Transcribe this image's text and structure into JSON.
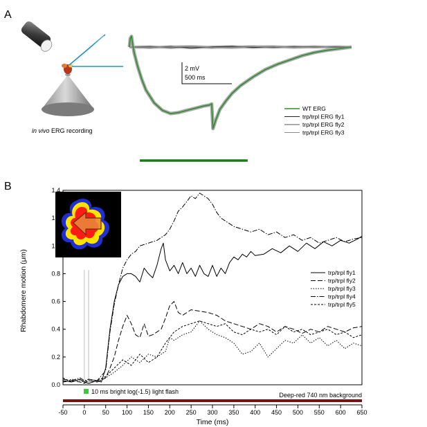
{
  "panel_a": {
    "letter": "A",
    "illustration_caption_italic": "in vivo",
    "illustration_caption_rest": " ERG recording",
    "scale_bar": {
      "voltage_label": "2 mV",
      "time_label": "500 ms"
    },
    "legend": [
      "WT ERG",
      "trp/trpl ERG fly1",
      "trp/trpl ERG fly2",
      "trp/trpl ERG fly3"
    ],
    "colors": {
      "wt": "#2e8b2e",
      "wt_envelope": "#a9a9a9",
      "stimulus_bar": "#1f7a1f",
      "mutant": "#333333"
    }
  },
  "panel_b": {
    "letter": "B",
    "stimulus_label": "10 ms bright log(-1.5) light flash",
    "background_label": "Deep-red 740 nm background",
    "colors": {
      "flash": "#33cc33",
      "background_bar": "#7a1010"
    },
    "inset": "rhabdomere-image"
  },
  "chart_data": [
    {
      "type": "line",
      "title": "",
      "xlabel": "",
      "ylabel": "",
      "x_unit": "ms",
      "stimulus": {
        "start": 0,
        "end": 2000
      },
      "scale_bar": {
        "voltage_mV": 2,
        "time_ms": 500
      },
      "series": [
        {
          "name": "WT ERG",
          "x": [
            0,
            20,
            50,
            80,
            120,
            200,
            300,
            400,
            600,
            800,
            1000,
            1200,
            1400,
            1600,
            1800,
            1950,
            2000,
            2030,
            2100,
            2200,
            2350,
            2500,
            2700,
            3000,
            3300,
            3600,
            3900,
            4200,
            4500,
            4800,
            5000,
            5200,
            5400
          ],
          "y": [
            0,
            0.8,
            1.0,
            0.2,
            -0.6,
            -1.8,
            -3.0,
            -4.0,
            -5.2,
            -5.9,
            -6.2,
            -6.1,
            -5.9,
            -5.7,
            -5.5,
            -5.4,
            -5.3,
            -7.6,
            -6.8,
            -5.8,
            -5.0,
            -4.3,
            -3.6,
            -2.8,
            -2.1,
            -1.6,
            -1.2,
            -0.8,
            -0.5,
            -0.3,
            -0.2,
            -0.1,
            0
          ]
        },
        {
          "name": "trp/trpl ERG fly1",
          "x": [
            0,
            500,
            1000,
            1500,
            2000,
            2500,
            3000,
            3500,
            4000,
            4500,
            5000,
            5400
          ],
          "y": [
            0,
            -0.05,
            0.05,
            -0.08,
            0.02,
            0.06,
            -0.04,
            0.03,
            -0.02,
            0.04,
            -0.03,
            0
          ]
        },
        {
          "name": "trp/trpl ERG fly2",
          "x": [
            0,
            500,
            1000,
            1500,
            2000,
            2500,
            3000,
            3500,
            4000,
            4500,
            5000,
            5400
          ],
          "y": [
            0,
            0.04,
            -0.06,
            0.03,
            -0.05,
            0.02,
            0.05,
            -0.03,
            0.04,
            -0.02,
            0.03,
            0
          ]
        },
        {
          "name": "trp/trpl ERG fly3",
          "x": [
            0,
            500,
            1000,
            1500,
            2000,
            2500,
            3000,
            3500,
            4000,
            4500,
            5000,
            5400
          ],
          "y": [
            0,
            -0.03,
            0.02,
            0.06,
            -0.02,
            -0.05,
            0.03,
            0.05,
            -0.04,
            0.02,
            -0.01,
            0
          ]
        }
      ]
    },
    {
      "type": "line",
      "title": "",
      "xlabel": "Time (ms)",
      "ylabel": "Rhabdomere motion (μm)",
      "xlim": [
        -50,
        650
      ],
      "ylim": [
        0,
        1.4
      ],
      "xticks": [
        -50,
        0,
        50,
        100,
        150,
        200,
        250,
        300,
        350,
        400,
        450,
        500,
        550,
        600,
        650
      ],
      "yticks": [
        0.0,
        0.2,
        0.4,
        0.6,
        0.8,
        1.0,
        1.2,
        1.4
      ],
      "xtick_labels": [
        "-50",
        "0",
        "50",
        "100",
        "150",
        "200",
        "250",
        "300",
        "350",
        "400",
        "450",
        "500",
        "550",
        "600",
        "650"
      ],
      "ytick_labels": [
        "0.0",
        "0.2",
        "0.4",
        "0.6",
        "0.8",
        "1.0",
        "1.2",
        "1.4"
      ],
      "grid": false,
      "legend_position": "right",
      "stimulus": {
        "start": 0,
        "end": 10
      },
      "series": [
        {
          "name": "trp/trpl fly1",
          "dash": "",
          "x": [
            -50,
            -30,
            -10,
            0,
            10,
            30,
            40,
            50,
            60,
            70,
            80,
            90,
            100,
            110,
            120,
            130,
            140,
            150,
            160,
            170,
            180,
            185,
            190,
            200,
            210,
            220,
            230,
            240,
            250,
            260,
            270,
            280,
            290,
            300,
            310,
            320,
            330,
            340,
            350,
            360,
            370,
            380,
            390,
            400,
            420,
            440,
            460,
            480,
            500,
            520,
            540,
            560,
            580,
            600,
            620,
            640,
            650
          ],
          "y": [
            0.03,
            0.02,
            0.04,
            0.02,
            0.01,
            0.03,
            0.02,
            0.12,
            0.4,
            0.6,
            0.72,
            0.78,
            0.8,
            0.8,
            0.78,
            0.74,
            0.84,
            0.8,
            0.77,
            0.86,
            0.98,
            1.02,
            0.9,
            0.82,
            0.86,
            0.8,
            0.88,
            0.8,
            0.84,
            0.78,
            0.86,
            0.8,
            0.78,
            0.86,
            0.78,
            0.84,
            0.8,
            0.88,
            0.92,
            0.9,
            0.94,
            0.92,
            0.96,
            0.93,
            0.94,
            0.98,
            0.95,
            1.0,
            0.96,
            1.02,
            0.98,
            1.03,
            1.0,
            1.04,
            1.02,
            1.05,
            1.07
          ]
        },
        {
          "name": "trp/trpl fly2",
          "dash": "7,3",
          "x": [
            -50,
            -30,
            -10,
            0,
            10,
            30,
            50,
            60,
            70,
            80,
            90,
            100,
            110,
            120,
            130,
            140,
            150,
            160,
            170,
            180,
            190,
            200,
            210,
            220,
            230,
            240,
            250,
            270,
            290,
            310,
            330,
            350,
            370,
            390,
            410,
            430,
            450,
            470,
            490,
            510,
            530,
            550,
            570,
            590,
            610,
            630,
            650
          ],
          "y": [
            0.02,
            0.03,
            0.02,
            0.01,
            0.03,
            0.02,
            0.05,
            0.12,
            0.2,
            0.32,
            0.42,
            0.5,
            0.44,
            0.36,
            0.34,
            0.44,
            0.35,
            0.36,
            0.38,
            0.4,
            0.48,
            0.57,
            0.6,
            0.52,
            0.5,
            0.52,
            0.54,
            0.53,
            0.52,
            0.5,
            0.46,
            0.44,
            0.42,
            0.4,
            0.44,
            0.42,
            0.38,
            0.42,
            0.4,
            0.37,
            0.4,
            0.38,
            0.42,
            0.4,
            0.38,
            0.41,
            0.42
          ]
        },
        {
          "name": "trp/trpl fly3",
          "dash": "1.5,2",
          "x": [
            -50,
            -30,
            -10,
            0,
            10,
            30,
            50,
            70,
            90,
            110,
            130,
            150,
            170,
            190,
            200,
            210,
            230,
            250,
            270,
            290,
            310,
            330,
            350,
            370,
            390,
            410,
            430,
            450,
            470,
            490,
            510,
            530,
            550,
            570,
            590,
            610,
            630,
            650
          ],
          "y": [
            0.02,
            0.04,
            0.03,
            0.02,
            0.03,
            0.02,
            0.05,
            0.09,
            0.14,
            0.2,
            0.16,
            0.22,
            0.2,
            0.24,
            0.34,
            0.32,
            0.36,
            0.38,
            0.46,
            0.4,
            0.36,
            0.34,
            0.3,
            0.22,
            0.24,
            0.3,
            0.2,
            0.26,
            0.32,
            0.3,
            0.36,
            0.3,
            0.34,
            0.28,
            0.32,
            0.26,
            0.3,
            0.28
          ]
        },
        {
          "name": "trp/trpl fly4",
          "dash": "7,2,1.5,2",
          "x": [
            -50,
            -30,
            -10,
            0,
            10,
            30,
            50,
            60,
            70,
            80,
            90,
            100,
            110,
            120,
            130,
            150,
            170,
            190,
            200,
            210,
            220,
            230,
            240,
            250,
            260,
            270,
            280,
            290,
            300,
            310,
            320,
            330,
            340,
            350,
            370,
            390,
            410,
            430,
            450,
            470,
            490,
            510,
            530,
            550,
            570,
            590,
            610,
            630,
            650
          ],
          "y": [
            0.04,
            0.03,
            0.05,
            0.03,
            0.04,
            0.03,
            0.1,
            0.38,
            0.58,
            0.72,
            0.84,
            0.9,
            0.94,
            0.96,
            1.0,
            1.02,
            1.04,
            1.08,
            1.12,
            1.18,
            1.25,
            1.28,
            1.32,
            1.36,
            1.34,
            1.38,
            1.36,
            1.34,
            1.3,
            1.24,
            1.2,
            1.18,
            1.16,
            1.14,
            1.12,
            1.1,
            1.12,
            1.08,
            1.1,
            1.06,
            1.08,
            1.04,
            1.06,
            1.02,
            1.04,
            1.06,
            1.03,
            1.05,
            1.06
          ]
        },
        {
          "name": "trp/trpl fly5",
          "dash": "3,2",
          "x": [
            -50,
            -30,
            -10,
            0,
            10,
            30,
            50,
            70,
            90,
            110,
            130,
            150,
            170,
            190,
            210,
            230,
            250,
            270,
            290,
            310,
            330,
            350,
            370,
            390,
            410,
            430,
            450,
            470,
            490,
            510,
            530,
            550,
            570,
            590,
            610,
            630,
            650
          ],
          "y": [
            0.05,
            0.02,
            0.04,
            0.02,
            0.04,
            0.03,
            0.06,
            0.12,
            0.18,
            0.14,
            0.22,
            0.16,
            0.2,
            0.3,
            0.38,
            0.42,
            0.44,
            0.46,
            0.44,
            0.42,
            0.44,
            0.38,
            0.36,
            0.4,
            0.38,
            0.4,
            0.36,
            0.42,
            0.38,
            0.4,
            0.36,
            0.38,
            0.4,
            0.36,
            0.38,
            0.34,
            0.36
          ]
        }
      ]
    }
  ]
}
